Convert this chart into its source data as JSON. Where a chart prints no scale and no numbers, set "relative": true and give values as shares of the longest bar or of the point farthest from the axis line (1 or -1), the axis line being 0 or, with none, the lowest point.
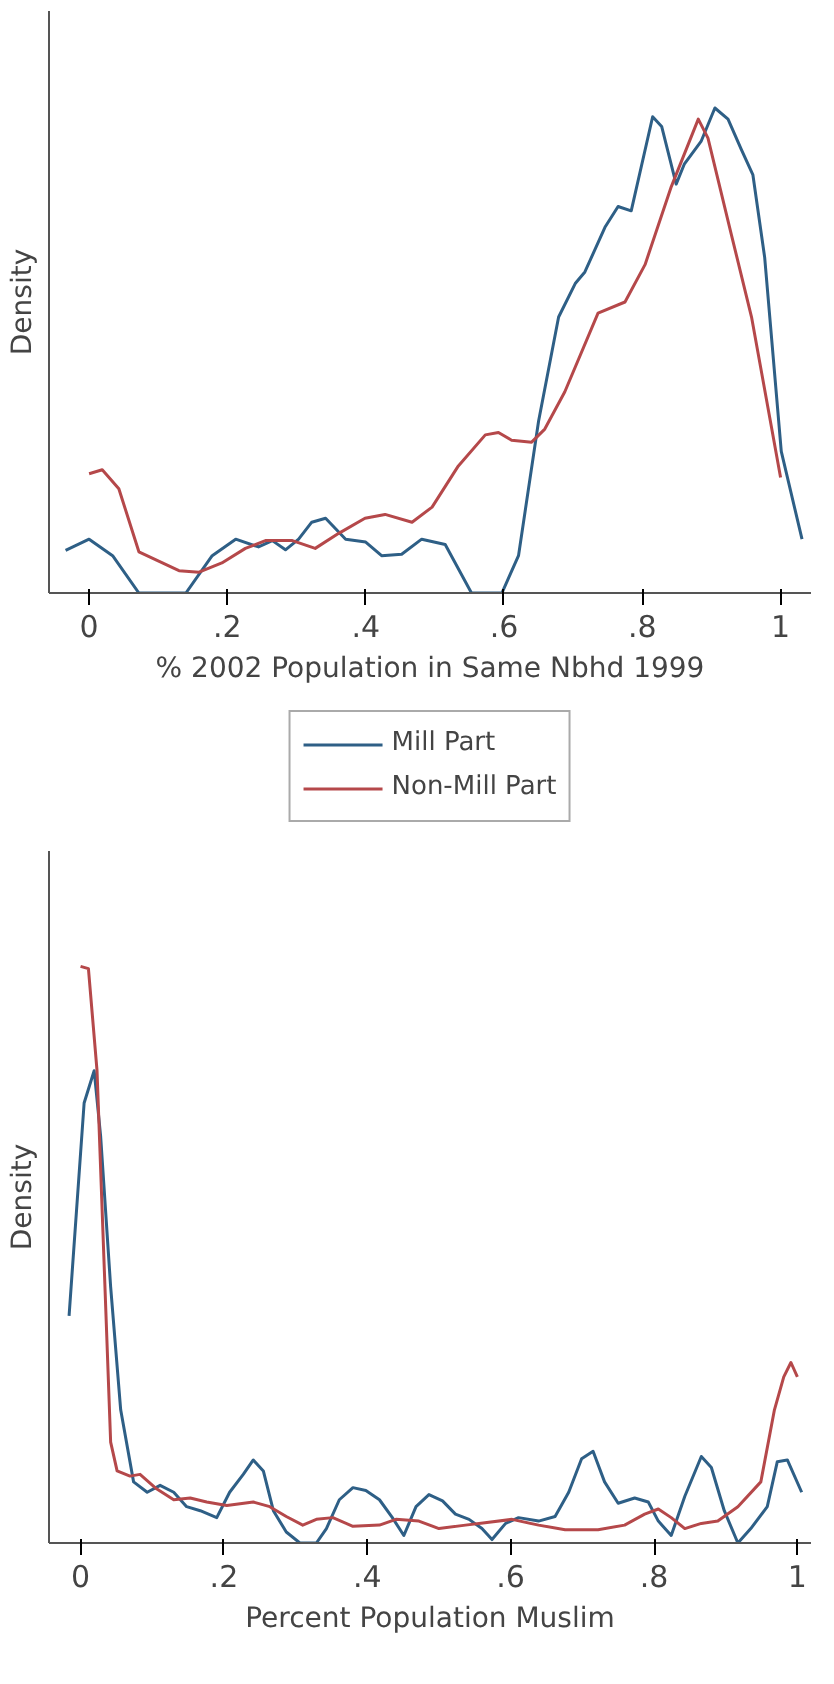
{
  "chart_data": [
    {
      "type": "line",
      "relative": true,
      "xlabel": "% 2002 Population in Same Nbhd 1999",
      "ylabel": "Density",
      "xlim": [
        -0.058,
        1.044
      ],
      "xticks": [
        {
          "value": 0,
          "label": "0"
        },
        {
          "value": 0.2,
          "label": ".2"
        },
        {
          "value": 0.4,
          "label": ".4"
        },
        {
          "value": 0.6,
          "label": ".6"
        },
        {
          "value": 0.8,
          "label": ".8"
        },
        {
          "value": 1,
          "label": "1"
        }
      ],
      "legend": "bottom",
      "tick_labels": "x",
      "series": [
        {
          "name": "Mill Part",
          "color": "#2e5f86",
          "x": [
            -0.034,
            0,
            0.034,
            0.072,
            0.14,
            0.178,
            0.212,
            0.245,
            0.265,
            0.284,
            0.303,
            0.322,
            0.342,
            0.371,
            0.4,
            0.423,
            0.452,
            0.481,
            0.515,
            0.553,
            0.597,
            0.621,
            0.65,
            0.679,
            0.703,
            0.717,
            0.746,
            0.765,
            0.784,
            0.815,
            0.828,
            0.849,
            0.861,
            0.885,
            0.905,
            0.924,
            0.943,
            0.96,
            0.977,
            1.001,
            1.031
          ],
          "values": [
            0.088,
            0.111,
            0.077,
            0,
            0,
            0.077,
            0.111,
            0.095,
            0.108,
            0.089,
            0.111,
            0.146,
            0.154,
            0.111,
            0.105,
            0.077,
            0.08,
            0.111,
            0.1,
            0,
            0,
            0.077,
            0.354,
            0.569,
            0.638,
            0.662,
            0.754,
            0.797,
            0.788,
            0.982,
            0.962,
            0.843,
            0.885,
            0.931,
            1,
            0.977,
            0.915,
            0.862,
            0.692,
            0.292,
            0.111
          ]
        },
        {
          "name": "Non-Mill Part",
          "color": "#b5484a",
          "x": [
            0,
            0.019,
            0.043,
            0.072,
            0.13,
            0.159,
            0.192,
            0.226,
            0.255,
            0.294,
            0.327,
            0.361,
            0.399,
            0.428,
            0.467,
            0.496,
            0.534,
            0.573,
            0.592,
            0.611,
            0.64,
            0.659,
            0.688,
            0.736,
            0.775,
            0.804,
            0.842,
            0.881,
            0.895,
            0.929,
            0.958,
            1.0
          ],
          "values": [
            0.246,
            0.254,
            0.215,
            0.085,
            0.046,
            0.043,
            0.062,
            0.092,
            0.108,
            0.108,
            0.092,
            0.123,
            0.154,
            0.162,
            0.146,
            0.177,
            0.262,
            0.326,
            0.331,
            0.315,
            0.311,
            0.338,
            0.415,
            0.577,
            0.6,
            0.677,
            0.838,
            0.977,
            0.938,
            0.738,
            0.569,
            0.238
          ]
        }
      ]
    },
    {
      "type": "line",
      "relative": true,
      "xlabel": "Percent Population Muslim",
      "ylabel": "Density",
      "xlim": [
        -0.044,
        1.019
      ],
      "xticks": [
        {
          "value": 0,
          "label": "0"
        },
        {
          "value": 0.2,
          "label": ".2"
        },
        {
          "value": 0.4,
          "label": ".4"
        },
        {
          "value": 0.6,
          "label": ".6"
        },
        {
          "value": 0.8,
          "label": ".8"
        },
        {
          "value": 1,
          "label": "1"
        }
      ],
      "tick_labels": "x",
      "series": [
        {
          "color": "#2e5f86",
          "x": [
            -0.016,
            0.005,
            0.019,
            0.028,
            0.042,
            0.056,
            0.074,
            0.093,
            0.111,
            0.13,
            0.148,
            0.167,
            0.19,
            0.208,
            0.227,
            0.241,
            0.255,
            0.269,
            0.287,
            0.306,
            0.329,
            0.343,
            0.361,
            0.38,
            0.398,
            0.417,
            0.435,
            0.451,
            0.468,
            0.486,
            0.505,
            0.523,
            0.542,
            0.56,
            0.574,
            0.593,
            0.611,
            0.639,
            0.662,
            0.681,
            0.699,
            0.715,
            0.731,
            0.75,
            0.773,
            0.792,
            0.806,
            0.824,
            0.843,
            0.866,
            0.88,
            0.898,
            0.917,
            0.935,
            0.958,
            0.972,
            0.986,
            1.006
          ],
          "values": [
            0.394,
            0.763,
            0.819,
            0.706,
            0.444,
            0.231,
            0.106,
            0.088,
            0.1,
            0.088,
            0.063,
            0.056,
            0.044,
            0.088,
            0.119,
            0.144,
            0.125,
            0.056,
            0.019,
            0,
            0,
            0.025,
            0.075,
            0.096,
            0.091,
            0.075,
            0.044,
            0.013,
            0.063,
            0.084,
            0.073,
            0.05,
            0.041,
            0.025,
            0.006,
            0.034,
            0.044,
            0.038,
            0.046,
            0.088,
            0.146,
            0.159,
            0.106,
            0.069,
            0.078,
            0.071,
            0.038,
            0.013,
            0.081,
            0.15,
            0.131,
            0.056,
            0,
            0.025,
            0.063,
            0.141,
            0.144,
            0.088
          ]
        },
        {
          "color": "#b5484a",
          "x": [
            0,
            0.011,
            0.023,
            0.042,
            0.051,
            0.069,
            0.083,
            0.106,
            0.13,
            0.153,
            0.176,
            0.204,
            0.241,
            0.264,
            0.287,
            0.31,
            0.329,
            0.352,
            0.38,
            0.417,
            0.44,
            0.472,
            0.5,
            0.537,
            0.602,
            0.639,
            0.676,
            0.722,
            0.759,
            0.787,
            0.806,
            0.824,
            0.843,
            0.866,
            0.889,
            0.917,
            0.949,
            0.968,
            0.981,
            0.991,
            1.0
          ],
          "values": [
            1,
            0.996,
            0.819,
            0.175,
            0.125,
            0.116,
            0.119,
            0.094,
            0.075,
            0.078,
            0.071,
            0.065,
            0.071,
            0.063,
            0.046,
            0.031,
            0.041,
            0.044,
            0.029,
            0.031,
            0.041,
            0.038,
            0.025,
            0.031,
            0.041,
            0.031,
            0.023,
            0.023,
            0.031,
            0.05,
            0.059,
            0.044,
            0.025,
            0.034,
            0.038,
            0.063,
            0.106,
            0.231,
            0.288,
            0.313,
            0.288
          ]
        }
      ]
    }
  ]
}
